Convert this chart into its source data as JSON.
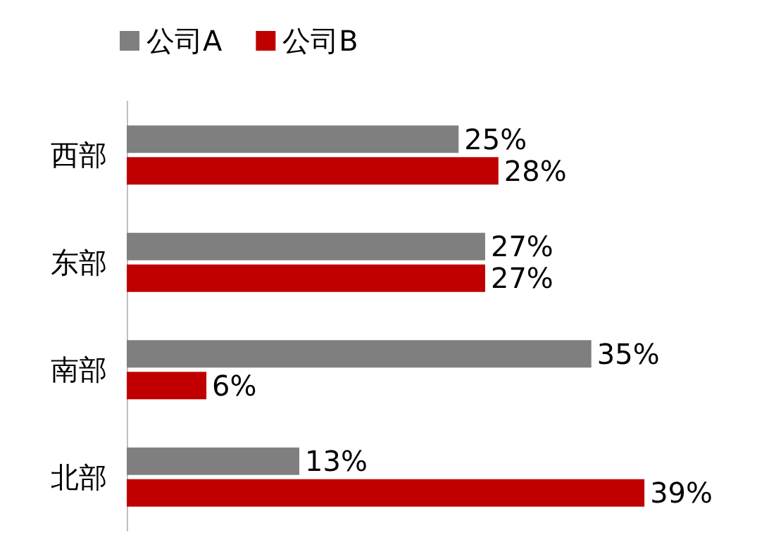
{
  "chart_data": {
    "type": "bar",
    "orientation": "horizontal",
    "categories": [
      "西部",
      "东部",
      "南部",
      "北部"
    ],
    "series": [
      {
        "name": "公司A",
        "color": "#7f7f7f",
        "values": [
          25,
          27,
          35,
          13
        ],
        "value_labels": [
          "25%",
          "27%",
          "35%",
          "13%"
        ]
      },
      {
        "name": "公司B",
        "color": "#c00000",
        "values": [
          28,
          27,
          6,
          39
        ],
        "value_labels": [
          "28%",
          "27%",
          "6%",
          "39%"
        ]
      }
    ],
    "legend": "top left"
  }
}
